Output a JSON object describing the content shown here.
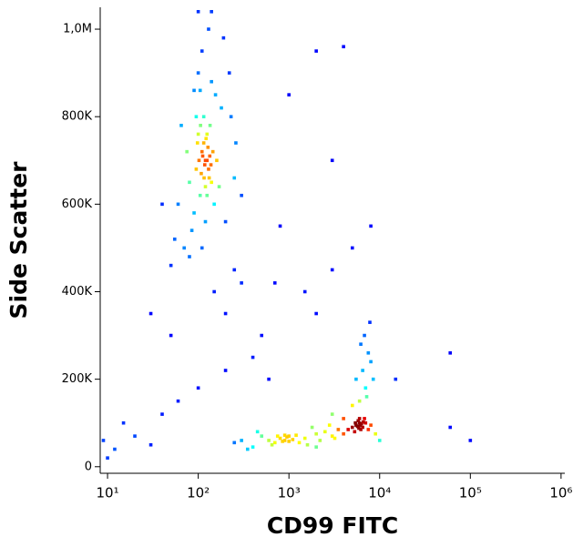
{
  "chart_data": {
    "type": "scatter",
    "colormap": "jet",
    "x_label": "CD99 FITC",
    "y_label": "Side Scatter",
    "x_log": true,
    "xlim": [
      8.3,
      1100000
    ],
    "ylim": [
      -15000,
      1050000
    ],
    "xticks": [
      {
        "value": 10,
        "label": "10¹"
      },
      {
        "value": 100,
        "label": "10²"
      },
      {
        "value": 1000,
        "label": "10³"
      },
      {
        "value": 10000,
        "label": "10⁴"
      },
      {
        "value": 100000,
        "label": "10⁵"
      },
      {
        "value": 1000000,
        "label": "10⁶"
      }
    ],
    "yticks": [
      0,
      {
        "value": 200000,
        "label": "200K"
      },
      {
        "value": 400000,
        "label": "400K"
      },
      {
        "value": 600000,
        "label": "600K"
      },
      {
        "value": 800000,
        "label": "800K"
      },
      {
        "value": 1000000,
        "label": "1,0M"
      }
    ],
    "x": [
      120,
      110,
      130,
      100,
      140,
      95,
      115,
      125,
      105,
      150,
      90,
      135,
      80,
      160,
      100,
      110,
      130,
      85,
      70,
      200,
      180,
      60,
      140,
      120,
      75,
      170,
      250,
      95,
      105,
      115,
      125,
      145,
      155,
      90,
      65,
      55,
      220,
      190,
      100,
      140,
      260,
      300,
      50,
      80,
      110,
      230,
      120,
      125,
      118,
      112,
      128,
      108,
      132,
      98,
      102,
      138,
      122,
      116,
      106,
      134,
      5500,
      6000,
      6500,
      5800,
      6200,
      5000,
      7000,
      6800,
      5300,
      6100,
      5700,
      6300,
      5900,
      6600,
      5400,
      6000,
      7500,
      4500,
      8000,
      4000,
      800,
      900,
      1000,
      700,
      1100,
      950,
      850,
      1200,
      600,
      750,
      1500,
      1300,
      1000,
      900,
      650,
      300,
      400,
      500,
      2000,
      2500,
      3000,
      3500,
      2200,
      1800,
      2800,
      3200,
      1600,
      450,
      350,
      2000,
      4000,
      3000,
      9000,
      10000,
      250,
      6000,
      7000,
      6500,
      7500,
      6800,
      5500,
      8000,
      7200,
      6200,
      7800,
      8500,
      5000,
      150,
      200,
      300,
      500,
      800,
      1000,
      2000,
      4000,
      3000,
      5000,
      8000,
      600,
      40,
      20,
      15,
      12,
      30,
      60,
      100,
      200,
      400,
      2000,
      1500,
      60000,
      60000,
      100000,
      15000,
      50,
      40,
      30,
      700,
      3000,
      10,
      9,
      250
    ],
    "values": [
      700000,
      720000,
      680000,
      760000,
      650000,
      800000,
      740000,
      620000,
      860000,
      600000,
      580000,
      780000,
      650000,
      700000,
      900000,
      950000,
      1000000,
      540000,
      500000,
      560000,
      820000,
      600000,
      880000,
      560000,
      720000,
      640000,
      660000,
      680000,
      620000,
      800000,
      760000,
      720000,
      850000,
      860000,
      780000,
      520000,
      900000,
      980000,
      1040000,
      1040000,
      740000,
      620000,
      460000,
      480000,
      500000,
      800000,
      640000,
      700000,
      690000,
      710000,
      730000,
      670000,
      660000,
      740000,
      700000,
      690000,
      750000,
      660000,
      780000,
      710000,
      95000,
      100000,
      90000,
      105000,
      85000,
      90000,
      100000,
      110000,
      80000,
      95000,
      92000,
      98000,
      88000,
      102000,
      100000,
      110000,
      85000,
      85000,
      95000,
      75000,
      65000,
      60000,
      70000,
      55000,
      62000,
      68000,
      58000,
      72000,
      60000,
      70000,
      65000,
      55000,
      58000,
      72000,
      50000,
      60000,
      45000,
      70000,
      75000,
      80000,
      70000,
      85000,
      60000,
      90000,
      95000,
      65000,
      50000,
      80000,
      40000,
      45000,
      110000,
      120000,
      75000,
      60000,
      55000,
      150000,
      180000,
      220000,
      260000,
      300000,
      200000,
      240000,
      160000,
      280000,
      330000,
      200000,
      140000,
      400000,
      350000,
      420000,
      300000,
      550000,
      850000,
      950000,
      960000,
      700000,
      500000,
      550000,
      200000,
      120000,
      70000,
      100000,
      40000,
      50000,
      150000,
      180000,
      220000,
      250000,
      350000,
      400000,
      260000,
      90000,
      60000,
      200000,
      300000,
      600000,
      350000,
      420000,
      450000,
      20000,
      60000,
      450000
    ]
  }
}
